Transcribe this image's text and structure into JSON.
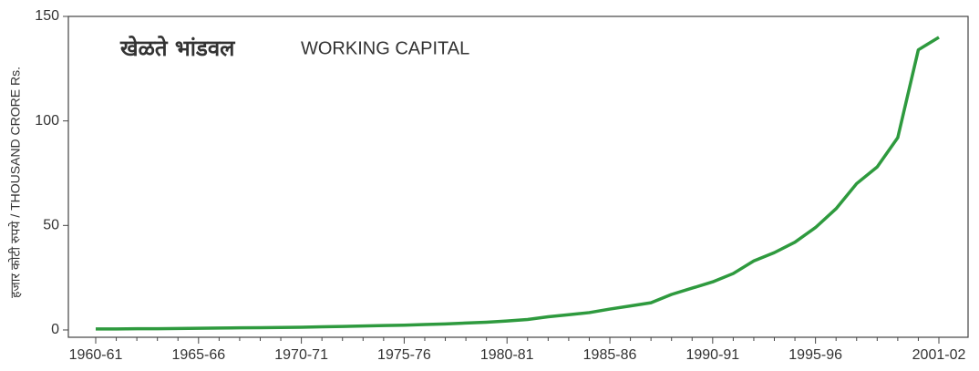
{
  "chart_data": {
    "type": "line",
    "title_local": "खेळते भांडवल",
    "title": "WORKING CAPITAL",
    "y_label": "हजार कोटी रुपये / THOUSAND CRORE Rs.",
    "categories": [
      "1960-61",
      null,
      null,
      null,
      null,
      "1965-66",
      null,
      null,
      null,
      null,
      "1970-71",
      null,
      null,
      null,
      null,
      "1975-76",
      null,
      null,
      null,
      null,
      "1980-81",
      null,
      null,
      null,
      null,
      "1985-86",
      null,
      null,
      null,
      null,
      "1990-91",
      null,
      null,
      null,
      null,
      "1995-96",
      null,
      null,
      null,
      null,
      null,
      "2001-02"
    ],
    "series": [
      {
        "color": "#2e9a3e",
        "values": [
          0.5,
          0.5,
          0.6,
          0.6,
          0.7,
          0.8,
          0.9,
          1,
          1.1,
          1.2,
          1.3,
          1.5,
          1.7,
          1.9,
          2.1,
          2.3,
          2.6,
          2.9,
          3.3,
          3.7,
          4.3,
          5,
          6.3,
          7.3,
          8.3,
          10,
          11.5,
          13,
          17,
          20,
          23,
          27,
          33,
          37,
          42,
          49,
          58,
          70,
          78,
          92,
          134,
          140
        ]
      }
    ],
    "ylim": [
      -3.5,
      150
    ],
    "yticks": [
      0,
      50,
      100,
      150
    ]
  }
}
